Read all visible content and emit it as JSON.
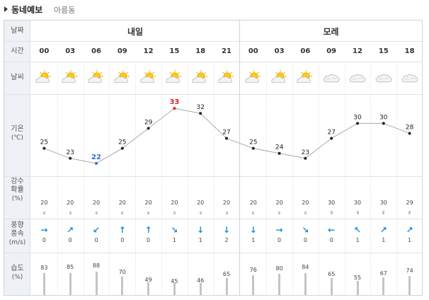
{
  "header": {
    "title": "동네예보",
    "place": "아름동"
  },
  "labels": {
    "date": "날짜",
    "time": "시간",
    "weather": "날씨",
    "temp": [
      "기온",
      "(℃)"
    ],
    "rain": [
      "강수",
      "확률",
      "(%)"
    ],
    "wind": [
      "풍향",
      "풍속",
      "(m/s)"
    ],
    "humidity": [
      "습도",
      "(%)"
    ]
  },
  "days": [
    {
      "name": "내일",
      "hours": [
        "00",
        "03",
        "06",
        "09",
        "12",
        "15",
        "18",
        "21"
      ]
    },
    {
      "name": "모레",
      "hours": [
        "00",
        "03",
        "06",
        "09",
        "12",
        "15",
        "18"
      ]
    }
  ],
  "forecast": [
    {
      "hour": "00",
      "weather": "sun-cloud-icon",
      "temp": 25,
      "rain": 20,
      "wind_dir": "→",
      "wind_speed": 0,
      "humidity": 83
    },
    {
      "hour": "03",
      "weather": "sun-cloud-icon",
      "temp": 23,
      "rain": 20,
      "wind_dir": "↗",
      "wind_speed": 0,
      "humidity": 85
    },
    {
      "hour": "06",
      "weather": "sun-cloud-icon",
      "temp": 22,
      "rain": 20,
      "wind_dir": "↙",
      "wind_speed": 0,
      "humidity": 88
    },
    {
      "hour": "09",
      "weather": "sun-cloud-icon",
      "temp": 25,
      "rain": 20,
      "wind_dir": "↑",
      "wind_speed": 0,
      "humidity": 70
    },
    {
      "hour": "12",
      "weather": "sun-cloud-icon",
      "temp": 29,
      "rain": 20,
      "wind_dir": "↑",
      "wind_speed": 0,
      "humidity": 49
    },
    {
      "hour": "15",
      "weather": "sun-cloud-icon",
      "temp": 33,
      "rain": 20,
      "wind_dir": "↘",
      "wind_speed": 1,
      "humidity": 45
    },
    {
      "hour": "18",
      "weather": "sun-cloud-icon",
      "temp": 32,
      "rain": 20,
      "wind_dir": "↓",
      "wind_speed": 1,
      "humidity": 46
    },
    {
      "hour": "21",
      "weather": "sun-cloud-icon",
      "temp": 27,
      "rain": 20,
      "wind_dir": "↓",
      "wind_speed": 2,
      "humidity": 65
    },
    {
      "hour": "00",
      "weather": "sun-cloud-icon",
      "temp": 25,
      "rain": 20,
      "wind_dir": "↓",
      "wind_speed": 1,
      "humidity": 76
    },
    {
      "hour": "03",
      "weather": "sun-cloud-icon",
      "temp": 24,
      "rain": 20,
      "wind_dir": "→",
      "wind_speed": 0,
      "humidity": 80
    },
    {
      "hour": "06",
      "weather": "sun-cloud-icon",
      "temp": 23,
      "rain": 20,
      "wind_dir": "↘",
      "wind_speed": 0,
      "humidity": 84
    },
    {
      "hour": "09",
      "weather": "cloud-icon",
      "temp": 27,
      "rain": 30,
      "wind_dir": "←",
      "wind_speed": 0,
      "humidity": 65
    },
    {
      "hour": "12",
      "weather": "cloud-icon",
      "temp": 30,
      "rain": 30,
      "wind_dir": "↖",
      "wind_speed": 1,
      "humidity": 55
    },
    {
      "hour": "15",
      "weather": "cloud-icon",
      "temp": 30,
      "rain": 30,
      "wind_dir": "↗",
      "wind_speed": 1,
      "humidity": 67
    },
    {
      "hour": "18",
      "weather": "cloud-icon",
      "temp": 28,
      "rain": 29,
      "wind_dir": "↗",
      "wind_speed": 1,
      "humidity": 74
    }
  ],
  "temp_max_index": 5,
  "temp_min_index": 2,
  "colors": {
    "max": "#e0202a",
    "min": "#2f6fd0",
    "wind": "#1d8bd6",
    "bar": "#c2c5ca",
    "line": "#aaaaaa"
  }
}
